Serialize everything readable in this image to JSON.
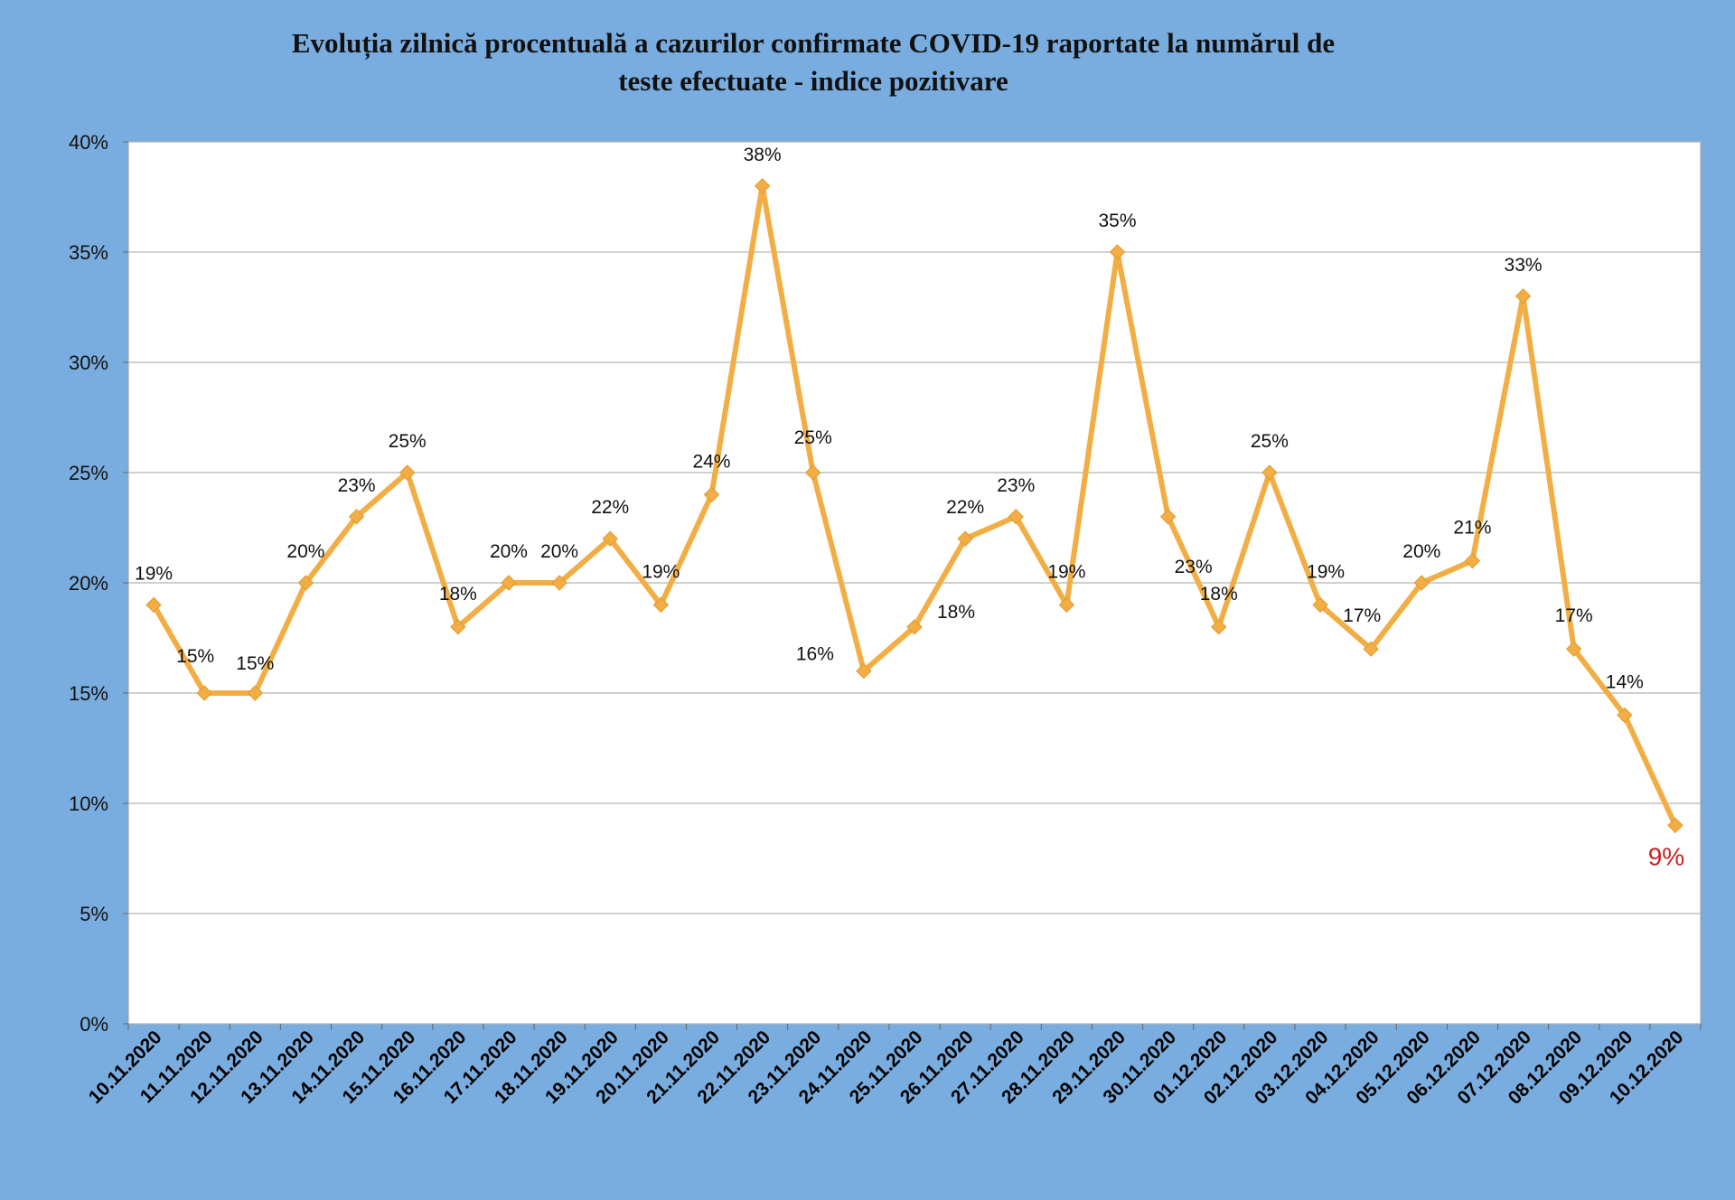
{
  "chart_data": {
    "type": "line",
    "title": "Evoluția zilnică procentuală a cazurilor confirmate COVID-19 raportate la numărul de teste efectuate - indice pozitivare",
    "title_lines": [
      "Evoluția zilnică procentuală a cazurilor confirmate COVID-19 raportate la numărul de",
      "teste efectuate - indice pozitivare"
    ],
    "xlabel": "",
    "ylabel": "",
    "ylim": [
      0,
      40
    ],
    "y_ticks": [
      "0%",
      "5%",
      "10%",
      "15%",
      "20%",
      "25%",
      "30%",
      "35%",
      "40%"
    ],
    "grid": true,
    "legend": "none",
    "categories": [
      "10.11.2020",
      "11.11.2020",
      "12.11.2020",
      "13.11.2020",
      "14.11.2020",
      "15.11.2020",
      "16.11.2020",
      "17.11.2020",
      "18.11.2020",
      "19.11.2020",
      "20.11.2020",
      "21.11.2020",
      "22.11.2020",
      "23.11.2020",
      "24.11.2020",
      "25.11.2020",
      "26.11.2020",
      "27.11.2020",
      "28.11.2020",
      "29.11.2020",
      "30.11.2020",
      "01.12.2020",
      "02.12.2020",
      "03.12.2020",
      "04.12.2020",
      "05.12.2020",
      "06.12.2020",
      "07.12.2020",
      "08.12.2020",
      "09.12.2020",
      "10.12.2020"
    ],
    "series": [
      {
        "values": [
          19,
          15,
          15,
          20,
          23,
          25,
          18,
          20,
          20,
          22,
          19,
          24,
          38,
          25,
          16,
          18,
          22,
          23,
          19,
          35,
          23,
          18,
          25,
          19,
          17,
          20,
          21,
          33,
          17,
          14,
          9
        ],
        "labels": [
          "19%",
          "15%",
          "15%",
          "20%",
          "23%",
          "25%",
          "18%",
          "20%",
          "20%",
          "22%",
          "19%",
          "24%",
          "38%",
          "25%",
          "16%",
          "18%",
          "22%",
          "23%",
          "19%",
          "35%",
          "23%",
          "18%",
          "25%",
          "19%",
          "17%",
          "20%",
          "21%",
          "33%",
          "17%",
          "14%",
          "9%"
        ]
      }
    ],
    "colors": {
      "background": "#7aaddf",
      "plot": "#ffffff",
      "line": "#f2ae45",
      "grid": "#b5b5b5",
      "highlight_label": "#cc1f1f"
    }
  }
}
